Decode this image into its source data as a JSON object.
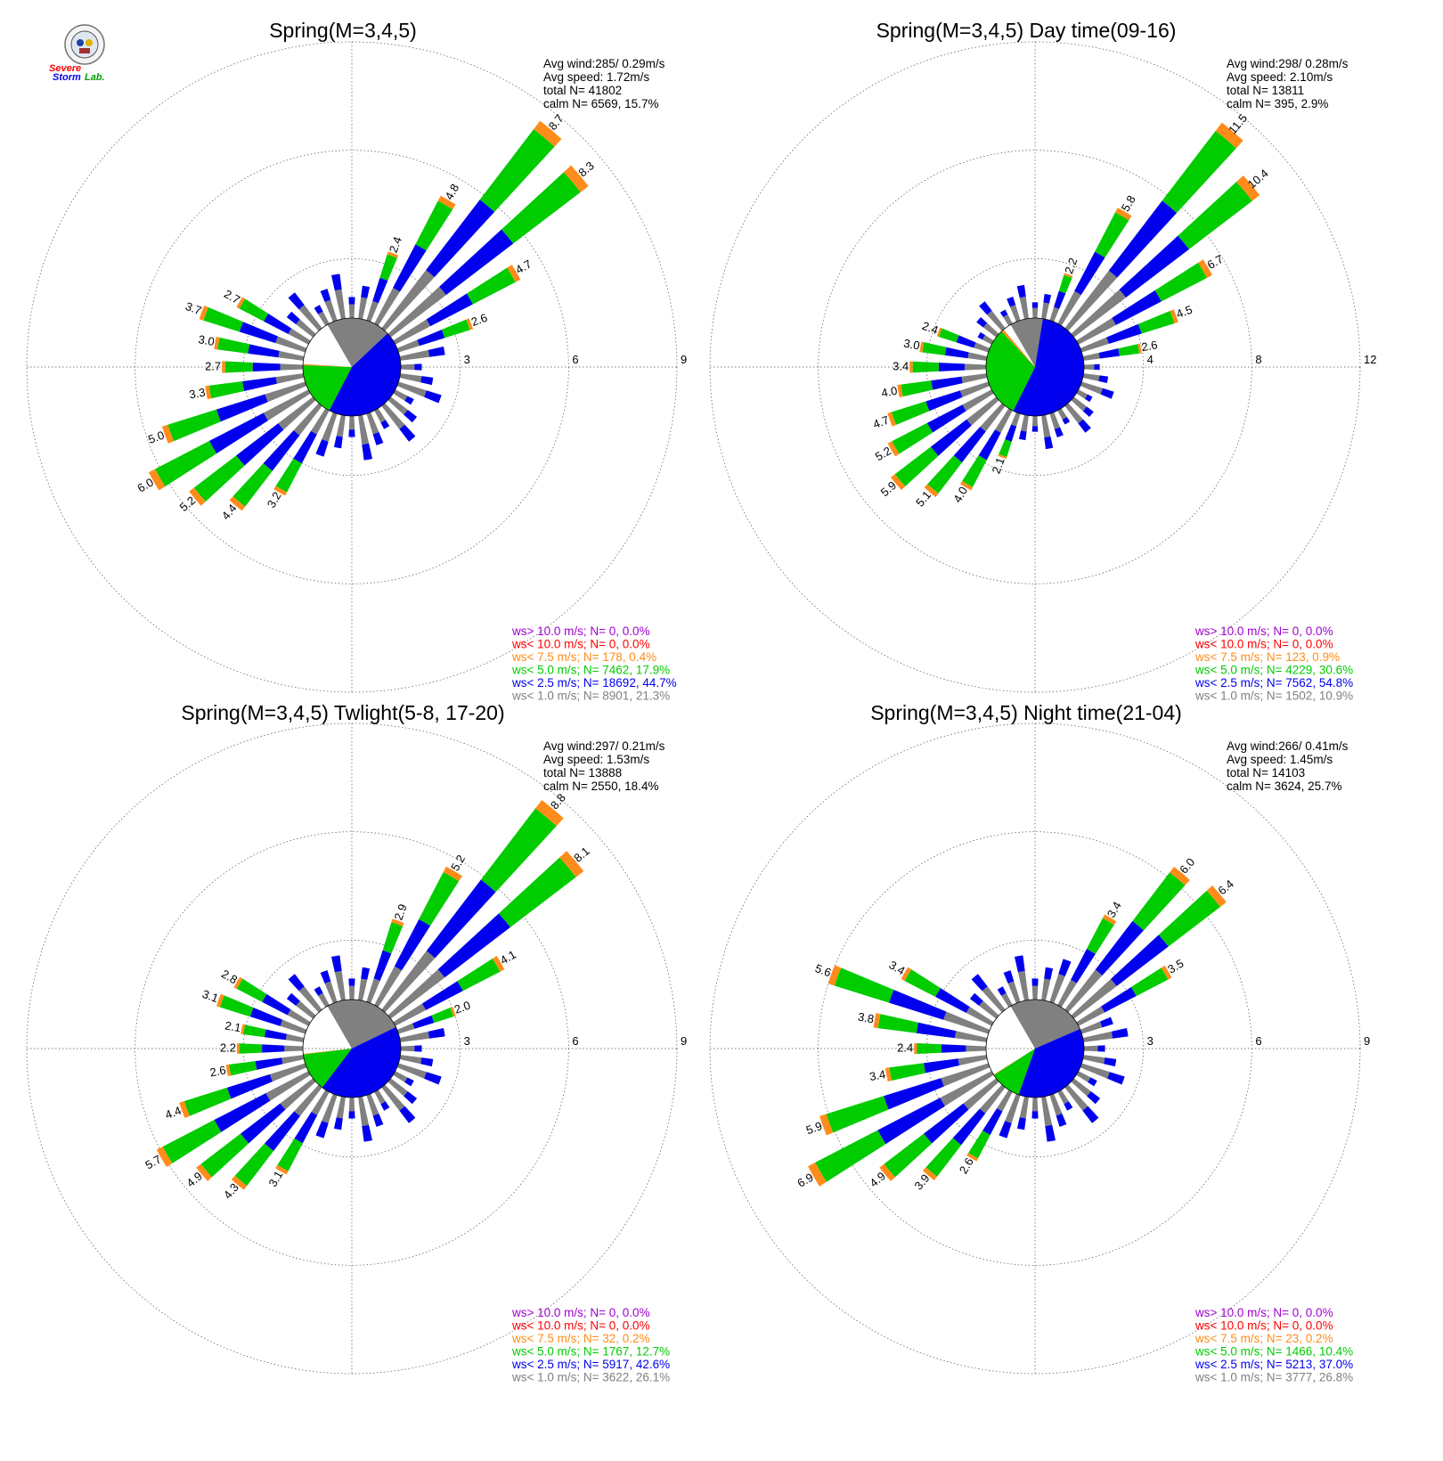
{
  "logo": {
    "line1": "Severe",
    "line2": "Storm",
    "line3": "Lab."
  },
  "colors": {
    "gray": "#808080",
    "blue": "#0000ee",
    "green": "#00cc00",
    "orange": "#ff8c1a",
    "red": "#ff0000",
    "purple": "#a000d0",
    "pie_white": "#ffffff"
  },
  "chart_data": [
    {
      "type": "polar-bar",
      "title": "Spring(M=3,4,5)",
      "stats": [
        "Avg wind:285/ 0.29m/s",
        "Avg speed: 1.72m/s",
        "total N=     41802",
        "calm N=   6569,  15.7%"
      ],
      "ring_ticks": [
        "3",
        "6",
        "9"
      ],
      "rmax": 9,
      "labeled_bars": [
        {
          "dir": 20,
          "value": 2.4,
          "label": "2.4"
        },
        {
          "dir": 30,
          "value": 4.8,
          "label": "4.8"
        },
        {
          "dir": 40,
          "value": 8.7,
          "label": "8.7"
        },
        {
          "dir": 50,
          "value": 8.3,
          "label": "8.3"
        },
        {
          "dir": 60,
          "value": 4.7,
          "label": "4.7"
        },
        {
          "dir": 70,
          "value": 2.6,
          "label": "2.6"
        },
        {
          "dir": 290,
          "value": 3.7,
          "label": "3.7"
        },
        {
          "dir": 300,
          "value": 2.7,
          "label": "2.7"
        },
        {
          "dir": 280,
          "value": 3.0,
          "label": "3.0"
        },
        {
          "dir": 270,
          "value": 2.7,
          "label": "2.7"
        },
        {
          "dir": 260,
          "value": 3.3,
          "label": "3.3"
        },
        {
          "dir": 250,
          "value": 5.0,
          "label": "5.0"
        },
        {
          "dir": 240,
          "value": 6.0,
          "label": "6.0"
        },
        {
          "dir": 230,
          "value": 5.2,
          "label": "5.2"
        },
        {
          "dir": 220,
          "value": 4.4,
          "label": "4.4"
        },
        {
          "dir": 210,
          "value": 3.2,
          "label": "3.2"
        }
      ],
      "pie": {
        "gray": 21.3,
        "blue": 44.7,
        "green": 17.9,
        "orange": 0.4
      },
      "legend": [
        {
          "text": "ws> 10.0 m/s; N=      0,  0.0%",
          "color": "#a000d0"
        },
        {
          "text": "ws< 10.0 m/s; N=      0,  0.0%",
          "color": "#ff0000"
        },
        {
          "text": "ws<  7.5 m/s; N=   178,  0.4%",
          "color": "#ff8c1a"
        },
        {
          "text": "ws<  5.0 m/s; N=  7462, 17.9%",
          "color": "#00cc00"
        },
        {
          "text": "ws<  2.5 m/s; N= 18692, 44.7%",
          "color": "#0000ee"
        },
        {
          "text": "ws<  1.0 m/s; N=  8901, 21.3%",
          "color": "#808080"
        }
      ]
    },
    {
      "type": "polar-bar",
      "title": "Spring(M=3,4,5) Day time(09-16)",
      "stats": [
        "Avg wind:298/ 0.28m/s",
        "Avg speed: 2.10m/s",
        "total N=     13811",
        "calm N=    395,   2.9%"
      ],
      "ring_ticks": [
        "4",
        "8",
        "12"
      ],
      "rmax": 12,
      "labeled_bars": [
        {
          "dir": 20,
          "value": 2.2,
          "label": "2.2"
        },
        {
          "dir": 30,
          "value": 5.8,
          "label": "5.8"
        },
        {
          "dir": 40,
          "value": 11.5,
          "label": "11.5"
        },
        {
          "dir": 50,
          "value": 10.4,
          "label": "10.4"
        },
        {
          "dir": 60,
          "value": 6.7,
          "label": "6.7"
        },
        {
          "dir": 70,
          "value": 4.5,
          "label": "4.5"
        },
        {
          "dir": 80,
          "value": 2.6,
          "label": "2.6"
        },
        {
          "dir": 290,
          "value": 2.4,
          "label": "2.4"
        },
        {
          "dir": 280,
          "value": 3.0,
          "label": "3.0"
        },
        {
          "dir": 270,
          "value": 3.4,
          "label": "3.4"
        },
        {
          "dir": 260,
          "value": 4.0,
          "label": "4.0"
        },
        {
          "dir": 250,
          "value": 4.7,
          "label": "4.7"
        },
        {
          "dir": 240,
          "value": 5.2,
          "label": "5.2"
        },
        {
          "dir": 230,
          "value": 5.9,
          "label": "5.9"
        },
        {
          "dir": 220,
          "value": 5.1,
          "label": "5.1"
        },
        {
          "dir": 210,
          "value": 4.0,
          "label": "4.0"
        },
        {
          "dir": 200,
          "value": 2.1,
          "label": "2.1"
        }
      ],
      "pie": {
        "gray": 10.9,
        "blue": 54.8,
        "green": 30.6,
        "orange": 0.9
      },
      "legend": [
        {
          "text": "ws> 10.0 m/s; N=      0,  0.0%",
          "color": "#a000d0"
        },
        {
          "text": "ws< 10.0 m/s; N=      0,  0.0%",
          "color": "#ff0000"
        },
        {
          "text": "ws<  7.5 m/s; N=   123,  0.9%",
          "color": "#ff8c1a"
        },
        {
          "text": "ws<  5.0 m/s; N=  4229, 30.6%",
          "color": "#00cc00"
        },
        {
          "text": "ws<  2.5 m/s; N=  7562, 54.8%",
          "color": "#0000ee"
        },
        {
          "text": "ws<  1.0 m/s; N=  1502, 10.9%",
          "color": "#808080"
        }
      ]
    },
    {
      "type": "polar-bar",
      "title": "Spring(M=3,4,5) Twlight(5-8, 17-20)",
      "stats": [
        "Avg wind:297/ 0.21m/s",
        "Avg speed: 1.53m/s",
        "total N=     13888",
        "calm N=   2550,  18.4%"
      ],
      "ring_ticks": [
        "3",
        "6",
        "9"
      ],
      "rmax": 9,
      "labeled_bars": [
        {
          "dir": 20,
          "value": 2.9,
          "label": "2.9"
        },
        {
          "dir": 30,
          "value": 5.2,
          "label": "5.2"
        },
        {
          "dir": 40,
          "value": 8.8,
          "label": "8.8"
        },
        {
          "dir": 50,
          "value": 8.1,
          "label": "8.1"
        },
        {
          "dir": 60,
          "value": 4.1,
          "label": "4.1"
        },
        {
          "dir": 70,
          "value": 2.0,
          "label": "2.0"
        },
        {
          "dir": 290,
          "value": 3.1,
          "label": "3.1"
        },
        {
          "dir": 300,
          "value": 2.8,
          "label": "2.8"
        },
        {
          "dir": 280,
          "value": 2.1,
          "label": "2.1"
        },
        {
          "dir": 270,
          "value": 2.2,
          "label": "2.2"
        },
        {
          "dir": 260,
          "value": 2.6,
          "label": "2.6"
        },
        {
          "dir": 250,
          "value": 4.4,
          "label": "4.4"
        },
        {
          "dir": 240,
          "value": 5.7,
          "label": "5.7"
        },
        {
          "dir": 230,
          "value": 4.9,
          "label": "4.9"
        },
        {
          "dir": 220,
          "value": 4.3,
          "label": "4.3"
        },
        {
          "dir": 210,
          "value": 3.1,
          "label": "3.1"
        }
      ],
      "pie": {
        "gray": 26.1,
        "blue": 42.6,
        "green": 12.7,
        "orange": 0.2
      },
      "legend": [
        {
          "text": "ws> 10.0 m/s; N=      0,  0.0%",
          "color": "#a000d0"
        },
        {
          "text": "ws< 10.0 m/s; N=      0,  0.0%",
          "color": "#ff0000"
        },
        {
          "text": "ws<  7.5 m/s; N=     32,  0.2%",
          "color": "#ff8c1a"
        },
        {
          "text": "ws<  5.0 m/s; N=  1767, 12.7%",
          "color": "#00cc00"
        },
        {
          "text": "ws<  2.5 m/s; N=  5917, 42.6%",
          "color": "#0000ee"
        },
        {
          "text": "ws<  1.0 m/s; N=  3622, 26.1%",
          "color": "#808080"
        }
      ]
    },
    {
      "type": "polar-bar",
      "title": "Spring(M=3,4,5) Night time(21-04)",
      "stats": [
        "Avg wind:266/ 0.41m/s",
        "Avg speed: 1.45m/s",
        "total N=     14103",
        "calm N=   3624,  25.7%"
      ],
      "ring_ticks": [
        "3",
        "6",
        "9"
      ],
      "rmax": 9,
      "labeled_bars": [
        {
          "dir": 30,
          "value": 3.4,
          "label": "3.4"
        },
        {
          "dir": 40,
          "value": 6.0,
          "label": "6.0"
        },
        {
          "dir": 50,
          "value": 6.4,
          "label": "6.4"
        },
        {
          "dir": 60,
          "value": 3.5,
          "label": "3.5"
        },
        {
          "dir": 290,
          "value": 5.6,
          "label": "5.6"
        },
        {
          "dir": 300,
          "value": 3.4,
          "label": "3.4"
        },
        {
          "dir": 280,
          "value": 3.8,
          "label": "3.8"
        },
        {
          "dir": 270,
          "value": 2.4,
          "label": "2.4"
        },
        {
          "dir": 260,
          "value": 3.4,
          "label": "3.4"
        },
        {
          "dir": 250,
          "value": 5.9,
          "label": "5.9"
        },
        {
          "dir": 240,
          "value": 6.9,
          "label": "6.9"
        },
        {
          "dir": 230,
          "value": 4.9,
          "label": "4.9"
        },
        {
          "dir": 220,
          "value": 3.9,
          "label": "3.9"
        },
        {
          "dir": 210,
          "value": 2.6,
          "label": "2.6"
        }
      ],
      "pie": {
        "gray": 26.8,
        "blue": 37.0,
        "green": 10.4,
        "orange": 0.2
      },
      "legend": [
        {
          "text": "ws> 10.0 m/s; N=      0,  0.0%",
          "color": "#a000d0"
        },
        {
          "text": "ws< 10.0 m/s; N=      0,  0.0%",
          "color": "#ff0000"
        },
        {
          "text": "ws<  7.5 m/s; N=     23,  0.2%",
          "color": "#ff8c1a"
        },
        {
          "text": "ws<  5.0 m/s; N=  1466, 10.4%",
          "color": "#00cc00"
        },
        {
          "text": "ws<  2.5 m/s; N=  5213, 37.0%",
          "color": "#0000ee"
        },
        {
          "text": "ws<  1.0 m/s; N=  3777, 26.8%",
          "color": "#808080"
        }
      ]
    }
  ]
}
